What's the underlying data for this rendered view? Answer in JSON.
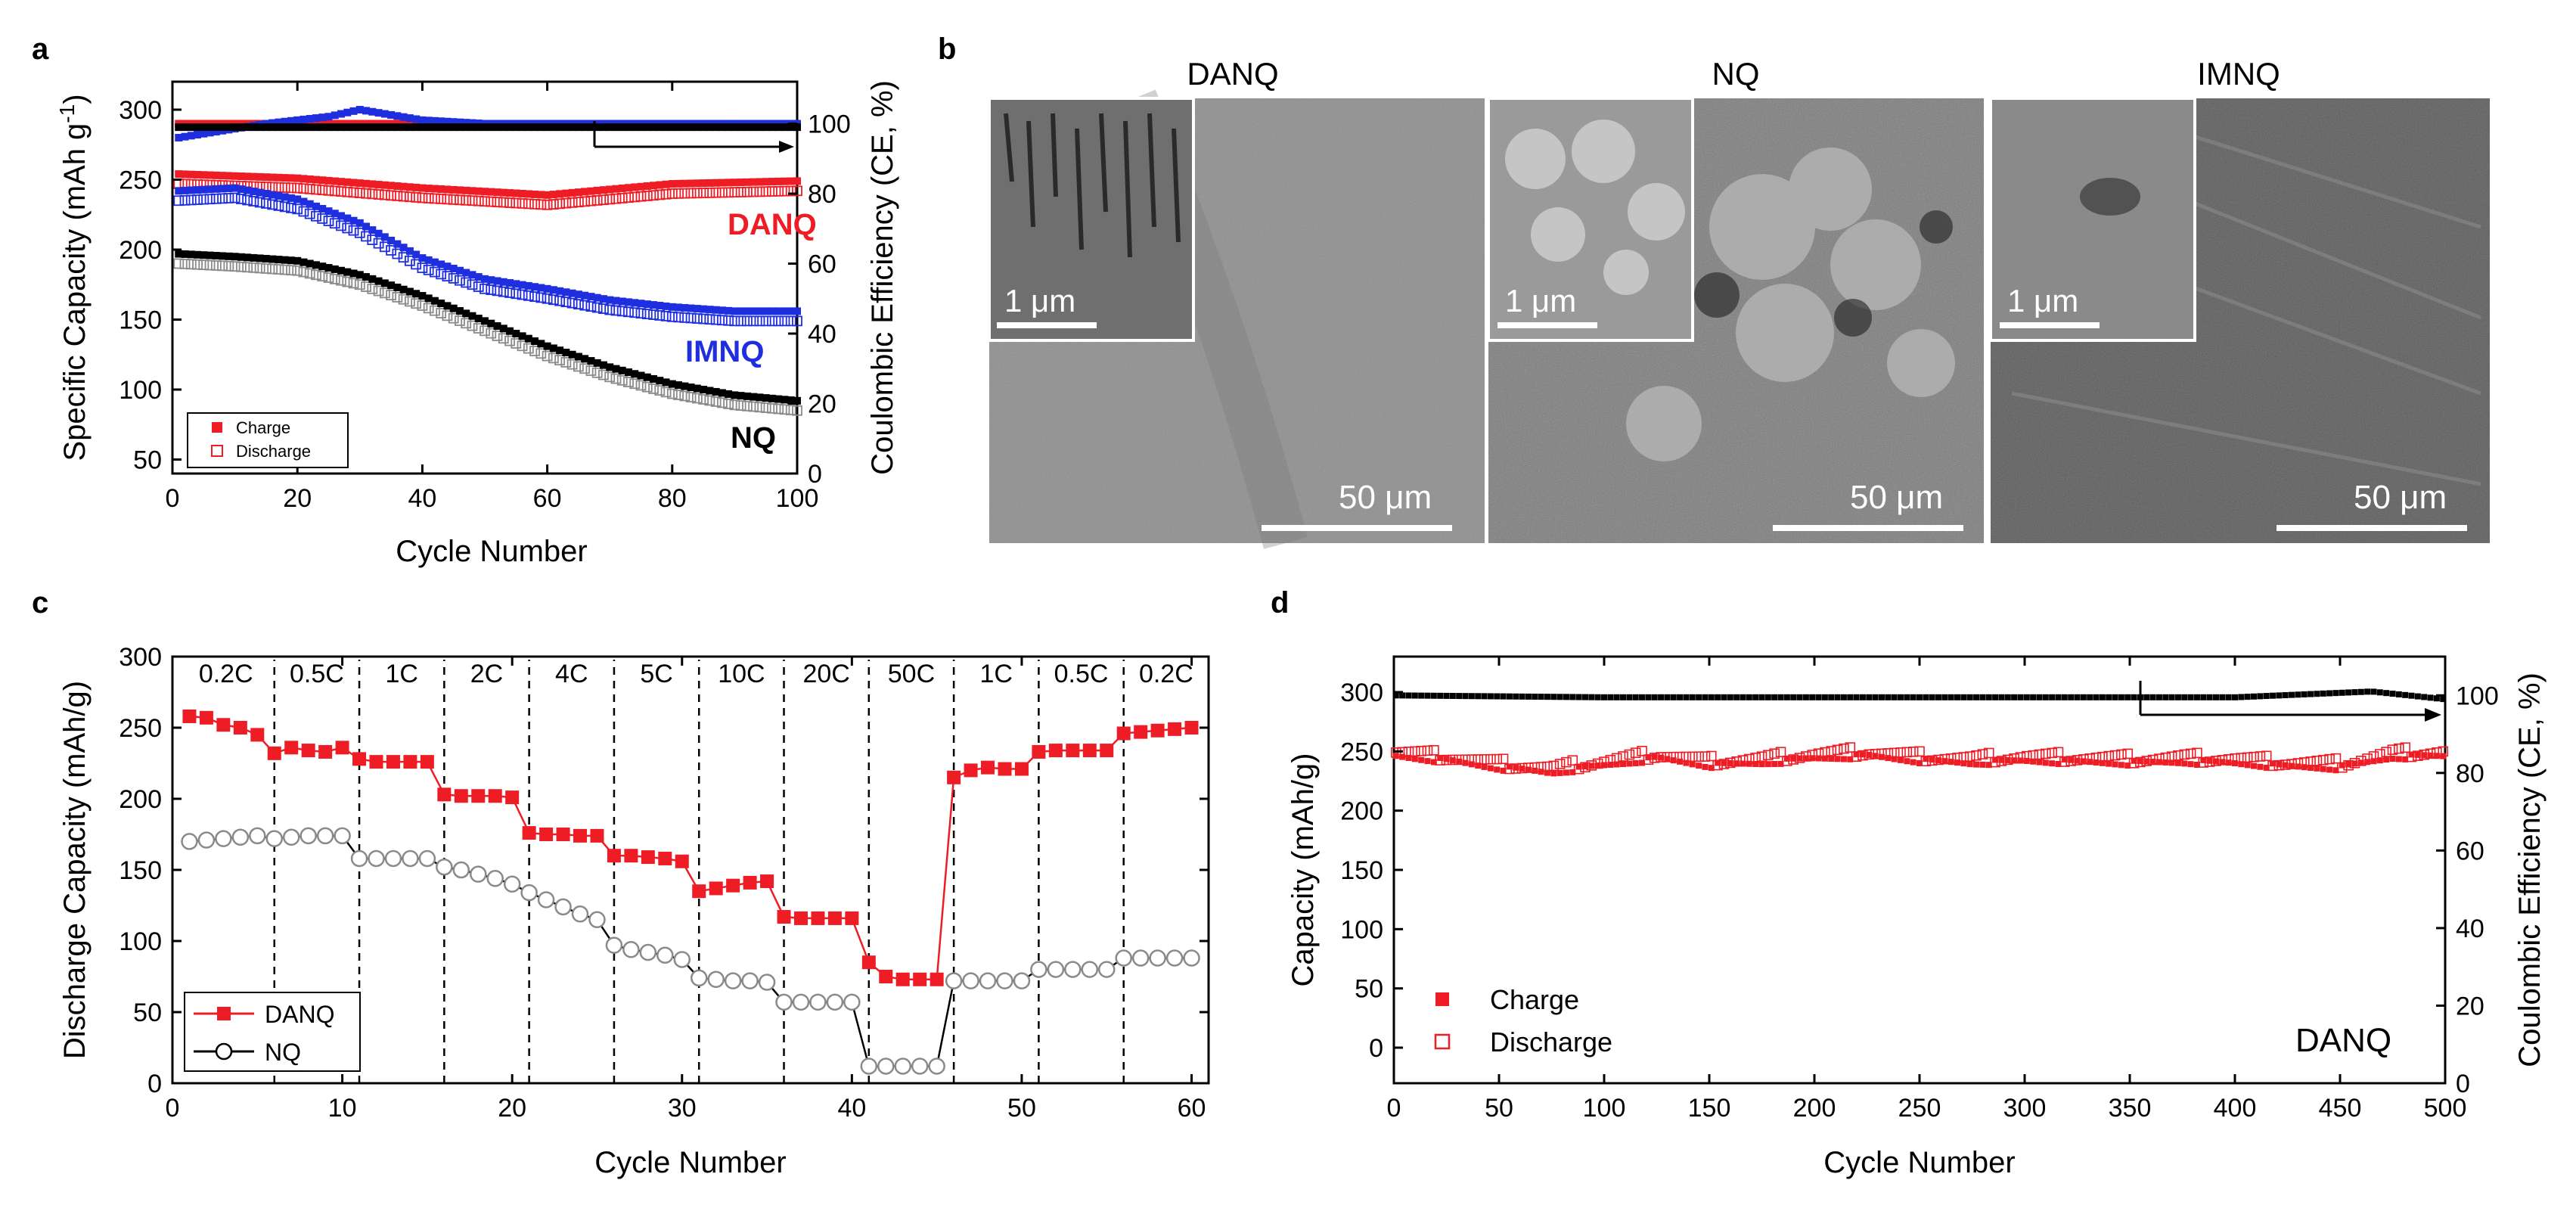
{
  "panel_letters": {
    "a": "a",
    "b": "b",
    "c": "c",
    "d": "d"
  },
  "colors": {
    "red": "#ee1c24",
    "blue": "#1f2fe0",
    "black": "#000000",
    "gray": "#8a8a8a"
  },
  "chart_data": [
    {
      "id": "a",
      "type": "scatter",
      "xlabel": "Cycle Number",
      "ylabel": "Specific Capacity (mAh g",
      "ylabel_sup": "-1",
      "ylabel_tail": ")",
      "y2label": "Coulombic Efficiency (CE, %)",
      "xlim": [
        0,
        100
      ],
      "ylim": [
        40,
        320
      ],
      "y2lim": [
        0,
        112
      ],
      "xticks": [
        0,
        20,
        40,
        60,
        80,
        100
      ],
      "yticks": [
        50,
        100,
        150,
        200,
        250,
        300
      ],
      "y2ticks": [
        0,
        20,
        40,
        60,
        80,
        100
      ],
      "legend": [
        {
          "label": "Charge",
          "marker": "filled-square"
        },
        {
          "label": "Discharge",
          "marker": "open-square"
        }
      ],
      "legend_position": "bottom-left",
      "annotations": [
        {
          "text": "DANQ",
          "color": "#ee1c24"
        },
        {
          "text": "IMNQ",
          "color": "#1f2fe0"
        },
        {
          "text": "NQ",
          "color": "#000000"
        }
      ],
      "series": [
        {
          "name": "DANQ capacity",
          "color": "#ee1c24",
          "x": [
            1,
            20,
            40,
            60,
            80,
            100
          ],
          "y": [
            250,
            247,
            240,
            235,
            243,
            245
          ]
        },
        {
          "name": "IMNQ capacity",
          "color": "#1f2fe0",
          "x": [
            1,
            10,
            20,
            30,
            40,
            50,
            60,
            70,
            80,
            90,
            100
          ],
          "y": [
            238,
            240,
            232,
            215,
            190,
            175,
            168,
            160,
            155,
            152,
            152
          ]
        },
        {
          "name": "NQ capacity",
          "color": "#000000",
          "x": [
            1,
            10,
            20,
            30,
            40,
            50,
            60,
            70,
            80,
            90,
            100
          ],
          "y": [
            193,
            191,
            188,
            178,
            163,
            145,
            127,
            112,
            100,
            92,
            88
          ]
        },
        {
          "name": "DANQ CE",
          "color": "#ee1c24",
          "x": [
            1,
            100
          ],
          "y": [
            100,
            100
          ]
        },
        {
          "name": "IMNQ CE",
          "color": "#1f2fe0",
          "x": [
            1,
            15,
            25,
            30,
            40,
            50,
            100
          ],
          "y": [
            96,
            100,
            102,
            104,
            101,
            100,
            100
          ]
        },
        {
          "name": "NQ CE",
          "color": "#000000",
          "x": [
            1,
            100
          ],
          "y": [
            99,
            99
          ]
        }
      ]
    },
    {
      "id": "c",
      "type": "line",
      "xlabel": "Cycle Number",
      "ylabel": "Discharge Capacity (mAh/g)",
      "xlim": [
        0,
        61
      ],
      "ylim": [
        0,
        300
      ],
      "xticks": [
        0,
        10,
        20,
        30,
        40,
        50,
        60
      ],
      "yticks": [
        0,
        50,
        100,
        150,
        200,
        250,
        300
      ],
      "rate_labels": [
        "0.2C",
        "0.5C",
        "1C",
        "2C",
        "4C",
        "5C",
        "10C",
        "20C",
        "50C",
        "1C",
        "0.5C",
        "0.2C"
      ],
      "rate_dividers": [
        6,
        11,
        16,
        21,
        26,
        31,
        36,
        41,
        46,
        51,
        56
      ],
      "legend": [
        {
          "label": "DANQ",
          "marker": "filled-square"
        },
        {
          "label": "NQ",
          "marker": "open-circle"
        }
      ],
      "legend_position": "bottom-left",
      "x": [
        1,
        2,
        3,
        4,
        5,
        6,
        7,
        8,
        9,
        10,
        11,
        12,
        13,
        14,
        15,
        16,
        17,
        18,
        19,
        20,
        21,
        22,
        23,
        24,
        25,
        26,
        27,
        28,
        29,
        30,
        31,
        32,
        33,
        34,
        35,
        36,
        37,
        38,
        39,
        40,
        41,
        42,
        43,
        44,
        45,
        46,
        47,
        48,
        49,
        50,
        51,
        52,
        53,
        54,
        55,
        56,
        57,
        58,
        59,
        60
      ],
      "series": [
        {
          "name": "DANQ",
          "color": "#ee1c24",
          "values": [
            258,
            257,
            252,
            250,
            245,
            232,
            236,
            234,
            233,
            236,
            228,
            226,
            226,
            226,
            226,
            203,
            202,
            202,
            202,
            201,
            176,
            175,
            175,
            174,
            174,
            160,
            160,
            159,
            158,
            156,
            135,
            137,
            139,
            141,
            142,
            117,
            116,
            116,
            116,
            116,
            85,
            75,
            73,
            73,
            73,
            215,
            220,
            222,
            221,
            221,
            233,
            234,
            234,
            234,
            234,
            246,
            247,
            248,
            249,
            250
          ]
        },
        {
          "name": "NQ",
          "color": "#8a8a8a",
          "values": [
            170,
            171,
            172,
            173,
            174,
            172,
            173,
            174,
            174,
            174,
            158,
            158,
            158,
            158,
            158,
            152,
            150,
            147,
            144,
            140,
            134,
            129,
            124,
            119,
            115,
            97,
            94,
            92,
            90,
            87,
            74,
            73,
            72,
            72,
            71,
            57,
            57,
            57,
            57,
            57,
            12,
            12,
            12,
            12,
            12,
            72,
            72,
            72,
            72,
            72,
            80,
            80,
            80,
            80,
            80,
            88,
            88,
            88,
            88,
            88
          ]
        }
      ]
    },
    {
      "id": "d",
      "type": "scatter",
      "xlabel": "Cycle Number",
      "ylabel": "Capacity (mAh/g)",
      "y2label": "Coulombic Efficiency (CE, %)",
      "xlim": [
        0,
        500
      ],
      "ylim": [
        -30,
        330
      ],
      "y2lim": [
        0,
        110
      ],
      "xticks": [
        0,
        50,
        100,
        150,
        200,
        250,
        300,
        350,
        400,
        450,
        500
      ],
      "yticks": [
        0,
        50,
        100,
        150,
        200,
        250,
        300
      ],
      "y2ticks": [
        0,
        20,
        40,
        60,
        80,
        100
      ],
      "legend": [
        {
          "label": "Charge",
          "marker": "filled-square"
        },
        {
          "label": "Discharge",
          "marker": "open-square"
        }
      ],
      "legend_position": "bottom-left",
      "annotation": "DANQ",
      "series": [
        {
          "name": "DANQ capacity",
          "color": "#ee1c24",
          "x": [
            0,
            25,
            50,
            75,
            100,
            125,
            150,
            175,
            200,
            225,
            250,
            275,
            300,
            325,
            350,
            375,
            400,
            425,
            450,
            475,
            500
          ],
          "y": [
            248,
            244,
            238,
            234,
            240,
            246,
            240,
            242,
            246,
            248,
            244,
            242,
            244,
            243,
            242,
            243,
            242,
            239,
            238,
            247,
            248
          ]
        },
        {
          "name": "DANQ CE",
          "color": "#000000",
          "x": [
            0,
            100,
            200,
            300,
            400,
            465,
            500
          ],
          "y": [
            100,
            99.5,
            99.5,
            99.5,
            99.5,
            101,
            99
          ]
        }
      ]
    }
  ],
  "sem_images": [
    {
      "title": "DANQ",
      "inset_scale": "1 μm",
      "main_scale": "50 μm"
    },
    {
      "title": "NQ",
      "inset_scale": "1 μm",
      "main_scale": "50 μm"
    },
    {
      "title": "IMNQ",
      "inset_scale": "1 μm",
      "main_scale": "50 μm"
    }
  ]
}
